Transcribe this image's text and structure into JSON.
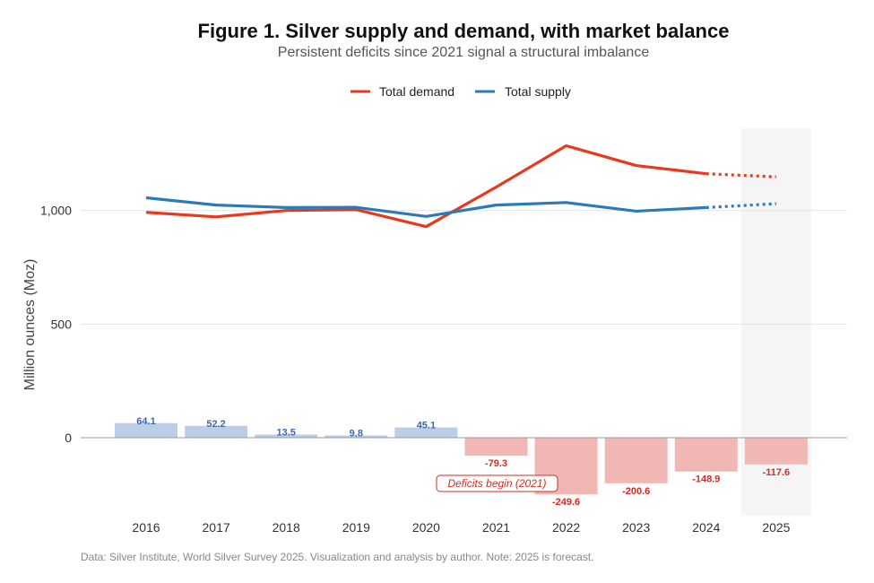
{
  "chart_data": {
    "type": "line+bar",
    "title": "Figure 1. Silver supply and demand, with market balance",
    "subtitle": "Persistent deficits since 2021 signal a structural imbalance",
    "ylabel": "Million ounces (Moz)",
    "xlabel": "",
    "ylim": [
      -340,
      1370
    ],
    "yticks": [
      0,
      500,
      1000
    ],
    "ytick_labels": [
      "0",
      "500",
      "1,000"
    ],
    "categories": [
      "2016",
      "2017",
      "2018",
      "2019",
      "2020",
      "2021",
      "2022",
      "2023",
      "2024",
      "2025"
    ],
    "series": [
      {
        "name": "Total demand",
        "type": "line",
        "color": "#e8391e",
        "values": [
          992,
          972,
          1000,
          1004,
          929,
          1103,
          1285,
          1198,
          1162,
          1148
        ]
      },
      {
        "name": "Total supply",
        "type": "line",
        "color": "#2b7bb9",
        "values": [
          1056,
          1024,
          1013,
          1014,
          974,
          1024,
          1035,
          997,
          1013,
          1030
        ]
      },
      {
        "name": "Market balance",
        "type": "bar",
        "values": [
          64.1,
          52.2,
          13.5,
          9.8,
          45.1,
          -79.3,
          -249.6,
          -200.6,
          -148.9,
          -117.6
        ],
        "labels": [
          "64.1",
          "52.2",
          "13.5",
          "9.8",
          "45.1",
          "-79.3",
          "-249.6",
          "-200.6",
          "-148.9",
          "-117.6"
        ]
      }
    ],
    "colors": {
      "surplus_bar": "#bccde6",
      "deficit_bar": "#f1b7b4",
      "forecast_shade": "#f5f5f5"
    },
    "forecast_from": "2024",
    "forecast_category": "2025",
    "legend": [
      "Total demand",
      "Total supply"
    ],
    "legend_position": "top",
    "grid": true,
    "annotation": "Deficits begin (2021)",
    "footer": "Data: Silver Institute, World Silver Survey 2025. Visualization and analysis by author. Note: 2025 is forecast."
  }
}
